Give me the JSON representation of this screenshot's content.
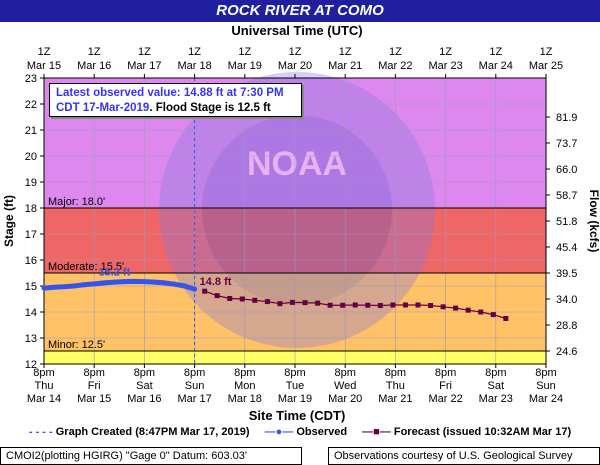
{
  "title": "ROCK RIVER AT COMO",
  "top_axis_title": "Universal Time (UTC)",
  "bottom_axis_title": "Site Time (CDT)",
  "left_axis_title": "Stage (ft)",
  "right_axis_title": "Flow (kcfs)",
  "callout": {
    "line1": "Latest observed value: 14.88 ft at 7:30 PM",
    "line2_blue": "CDT 17-Mar-2019",
    "line2_black": ". Flood Stage is 12.5 ft"
  },
  "legend": {
    "graph_created": "Graph Created (8:47PM Mar 17, 2019)",
    "observed": "Observed",
    "forecast": "Forecast (issued 10:32AM Mar 17)"
  },
  "footer": {
    "left": "CMOI2(plotting HGIRG) \"Gage 0\" Datum: 603.03'",
    "right": "Observations courtesy of U.S. Geological Survey"
  },
  "colors": {
    "major_band": "#dd88ee",
    "moderate_band": "#ee6666",
    "minor_band": "#ffc266",
    "action_band": "#ffff66",
    "observed": "#3355ee",
    "forecast": "#660044"
  },
  "chart_data": {
    "type": "line",
    "ylim": [
      12,
      23
    ],
    "y_ticks": [
      12,
      13,
      14,
      15,
      16,
      17,
      18,
      19,
      20,
      21,
      22,
      23
    ],
    "right_ticks": [
      "24.6",
      "28.8",
      "34.0",
      "39.5",
      "45.4",
      "51.8",
      "58.7",
      "66.0",
      "73.7",
      "81.9"
    ],
    "right_tick_stage": [
      12.5,
      13.5,
      14.5,
      15.5,
      16.5,
      17.5,
      18.5,
      19.5,
      20.5,
      21.5
    ],
    "x_days_range": [
      0,
      10
    ],
    "top_ticks": [
      {
        "l1": "1Z",
        "l2": "Mar 15"
      },
      {
        "l1": "1Z",
        "l2": "Mar 16"
      },
      {
        "l1": "1Z",
        "l2": "Mar 17"
      },
      {
        "l1": "1Z",
        "l2": "Mar 18"
      },
      {
        "l1": "1Z",
        "l2": "Mar 19"
      },
      {
        "l1": "1Z",
        "l2": "Mar 20"
      },
      {
        "l1": "1Z",
        "l2": "Mar 21"
      },
      {
        "l1": "1Z",
        "l2": "Mar 22"
      },
      {
        "l1": "1Z",
        "l2": "Mar 23"
      },
      {
        "l1": "1Z",
        "l2": "Mar 24"
      },
      {
        "l1": "1Z",
        "l2": "Mar 25"
      }
    ],
    "bottom_ticks": [
      {
        "l1": "8pm",
        "l2": "Thu",
        "l3": "Mar 14"
      },
      {
        "l1": "8pm",
        "l2": "Fri",
        "l3": "Mar 15"
      },
      {
        "l1": "8pm",
        "l2": "Sat",
        "l3": "Mar 16"
      },
      {
        "l1": "8pm",
        "l2": "Sun",
        "l3": "Mar 17"
      },
      {
        "l1": "8pm",
        "l2": "Mon",
        "l3": "Mar 18"
      },
      {
        "l1": "8pm",
        "l2": "Tue",
        "l3": "Mar 19"
      },
      {
        "l1": "8pm",
        "l2": "Wed",
        "l3": "Mar 20"
      },
      {
        "l1": "8pm",
        "l2": "Thu",
        "l3": "Mar 21"
      },
      {
        "l1": "8pm",
        "l2": "Fri",
        "l3": "Mar 22"
      },
      {
        "l1": "8pm",
        "l2": "Sat",
        "l3": "Mar 23"
      },
      {
        "l1": "8pm",
        "l2": "Sun",
        "l3": "Mar 24"
      }
    ],
    "flood_categories": [
      {
        "name": "Major",
        "label": "Major: 18.0'",
        "stage": 18.0
      },
      {
        "name": "Moderate",
        "label": "Moderate: 15.5'",
        "stage": 15.5
      },
      {
        "name": "Minor",
        "label": "Minor: 12.5'",
        "stage": 12.5
      }
    ],
    "graph_created_day": 3.0,
    "observed": {
      "x": [
        0.0,
        0.2,
        0.4,
        0.6,
        0.8,
        1.0,
        1.2,
        1.4,
        1.6,
        1.8,
        2.0,
        2.2,
        2.4,
        2.6,
        2.8,
        3.0
      ],
      "y": [
        14.92,
        14.95,
        14.97,
        15.0,
        15.05,
        15.08,
        15.12,
        15.15,
        15.17,
        15.18,
        15.17,
        15.15,
        15.12,
        15.07,
        15.0,
        14.88
      ],
      "peak_label": "15.2 ft",
      "peak_x": 1.8,
      "peak_y": 15.18
    },
    "forecast": {
      "x": [
        3.2,
        3.45,
        3.7,
        3.95,
        4.2,
        4.45,
        4.7,
        4.95,
        5.2,
        5.45,
        5.7,
        5.95,
        6.2,
        6.45,
        6.7,
        6.95,
        7.2,
        7.45,
        7.7,
        7.95,
        8.2,
        8.45,
        8.7,
        8.95,
        9.2
      ],
      "y": [
        14.8,
        14.63,
        14.52,
        14.5,
        14.45,
        14.4,
        14.32,
        14.37,
        14.36,
        14.34,
        14.26,
        14.26,
        14.27,
        14.26,
        14.25,
        14.27,
        14.27,
        14.27,
        14.25,
        14.2,
        14.15,
        14.07,
        14.0,
        13.9,
        13.75
      ],
      "start_label": "14.8 ft"
    }
  }
}
